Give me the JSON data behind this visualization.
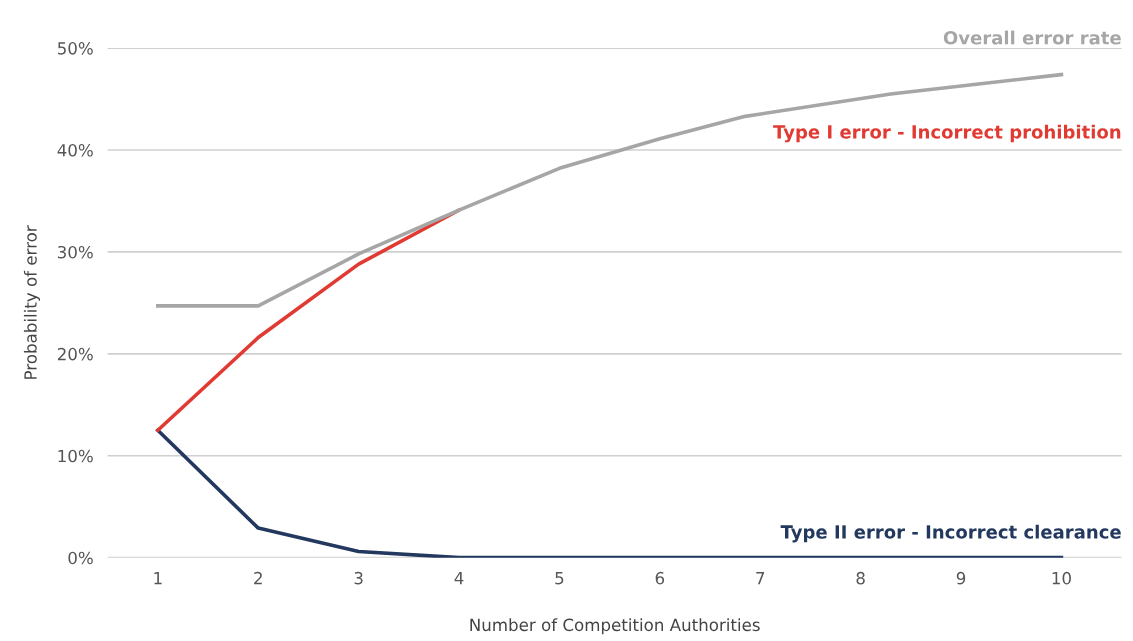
{
  "chart_data": {
    "type": "line",
    "xlabel": "Number of Competition Authorities",
    "ylabel": "Probability of error",
    "series": [
      {
        "name": "Overall error rate",
        "color": "#a6a6a6",
        "x": [
          1,
          2,
          3,
          4,
          5,
          6,
          6.85,
          8.3,
          10
        ],
        "values": [
          24.7,
          24.7,
          29.8,
          34.1,
          38.2,
          41.1,
          43.3,
          45.5,
          47.4
        ]
      },
      {
        "name": "Type I error - Incorrect prohibition",
        "color": "#e03a33",
        "x": [
          1,
          2,
          3,
          4
        ],
        "values": [
          12.5,
          21.6,
          28.8,
          34.1
        ]
      },
      {
        "name": "Type II error - Incorrect clearance",
        "color": "#23385e",
        "x": [
          1,
          2,
          3,
          4,
          10
        ],
        "values": [
          12.5,
          2.9,
          0.6,
          0,
          0
        ]
      }
    ],
    "xlim": [
      0.5,
      10.6
    ],
    "xticks": [
      1,
      2,
      3,
      4,
      5,
      6,
      7,
      8,
      9,
      10
    ],
    "ylim": [
      0,
      50
    ],
    "yticks": [
      {
        "value": 0,
        "label": "0%"
      },
      {
        "value": 10,
        "label": "10%"
      },
      {
        "value": 20,
        "label": "20%"
      },
      {
        "value": 30,
        "label": "30%"
      },
      {
        "value": 40,
        "label": "40%"
      },
      {
        "value": 50,
        "label": "50%"
      }
    ],
    "grid": "y",
    "legend": false,
    "marker": "none",
    "line_style": "solid"
  }
}
